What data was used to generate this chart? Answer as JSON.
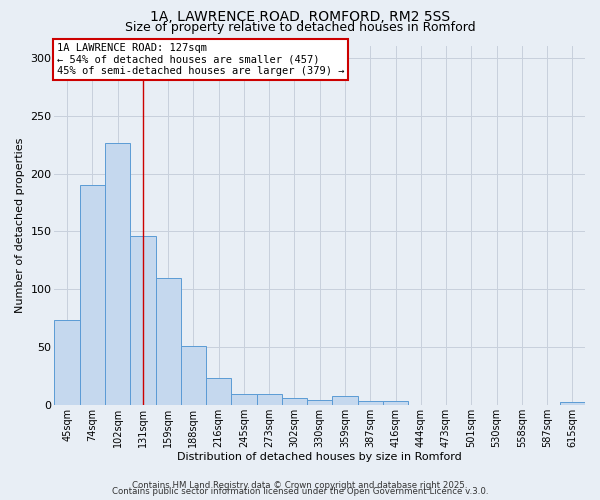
{
  "title1": "1A, LAWRENCE ROAD, ROMFORD, RM2 5SS",
  "title2": "Size of property relative to detached houses in Romford",
  "xlabel": "Distribution of detached houses by size in Romford",
  "ylabel": "Number of detached properties",
  "categories": [
    "45sqm",
    "74sqm",
    "102sqm",
    "131sqm",
    "159sqm",
    "188sqm",
    "216sqm",
    "245sqm",
    "273sqm",
    "302sqm",
    "330sqm",
    "359sqm",
    "387sqm",
    "416sqm",
    "444sqm",
    "473sqm",
    "501sqm",
    "530sqm",
    "558sqm",
    "587sqm",
    "615sqm"
  ],
  "values": [
    73,
    190,
    226,
    146,
    110,
    51,
    23,
    9,
    9,
    6,
    4,
    8,
    3,
    3,
    0,
    0,
    0,
    0,
    0,
    0,
    2
  ],
  "bar_color": "#c5d8ee",
  "bar_edge_color": "#5b9bd5",
  "grid_color": "#c8d0dc",
  "bg_color": "#e8eef5",
  "red_line_x": 3.0,
  "annotation_title": "1A LAWRENCE ROAD: 127sqm",
  "annotation_line1": "← 54% of detached houses are smaller (457)",
  "annotation_line2": "45% of semi-detached houses are larger (379) →",
  "annotation_box_color": "#cc0000",
  "ylim": [
    0,
    310
  ],
  "yticks": [
    0,
    50,
    100,
    150,
    200,
    250,
    300
  ],
  "footer1": "Contains HM Land Registry data © Crown copyright and database right 2025.",
  "footer2": "Contains public sector information licensed under the Open Government Licence v.3.0."
}
